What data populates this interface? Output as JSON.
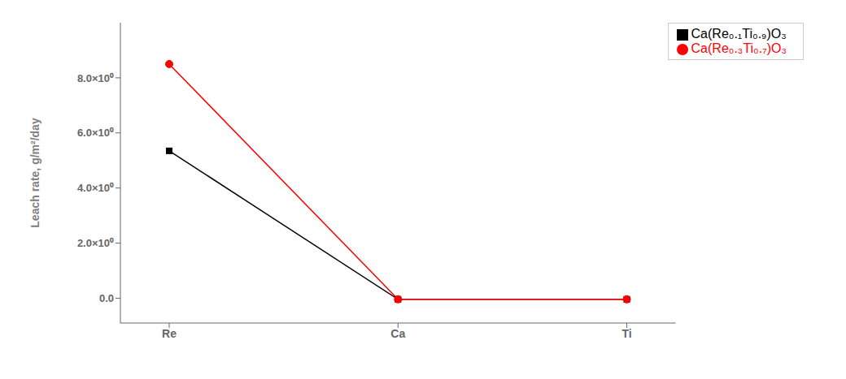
{
  "chart_data": {
    "type": "line",
    "categories": [
      "Re",
      "Ca",
      "Ti"
    ],
    "series": [
      {
        "name": "Ca(Re₀.₁Ti₀.₉)O₃",
        "color": "black",
        "marker": "square",
        "values": [
          5.35,
          -0.04,
          -0.04
        ]
      },
      {
        "name": "Ca(Re₀.₃Ti₀.₇)O₃",
        "color": "red",
        "marker": "circle",
        "values": [
          8.5,
          -0.04,
          -0.04
        ]
      }
    ],
    "y_label": "Leach rate, g/m²/day",
    "ylim": [
      -0.9,
      10.0
    ],
    "yticks": [
      {
        "value": 0.0,
        "label": "0.0"
      },
      {
        "value": 2.0,
        "label": "2.0×10⁰"
      },
      {
        "value": 4.0,
        "label": "4.0×10⁰"
      },
      {
        "value": 6.0,
        "label": "6.0×10⁰"
      },
      {
        "value": 8.0,
        "label": "8.0×10⁰"
      }
    ],
    "grid": false,
    "legend": "upper right"
  }
}
